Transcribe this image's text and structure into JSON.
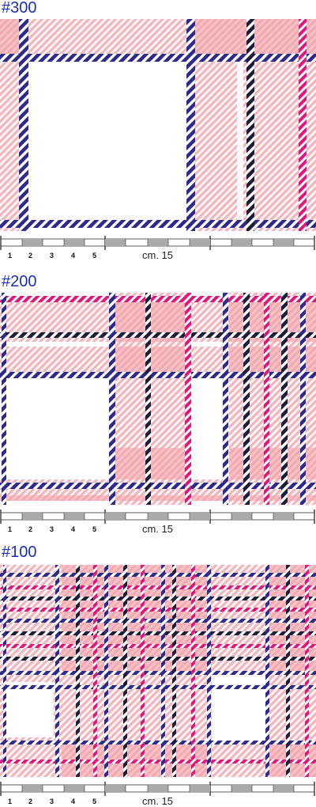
{
  "samples": [
    {
      "title": "#300",
      "numbers": [
        "1",
        "2",
        "3",
        "4",
        "5"
      ],
      "scale_label": "cm. 15"
    },
    {
      "title": "#200",
      "numbers": [
        "1",
        "2",
        "3",
        "4",
        "5"
      ],
      "scale_label": "cm. 15"
    },
    {
      "title": "#100",
      "numbers": [
        "1",
        "2",
        "3",
        "4",
        "5"
      ],
      "scale_label": "cm. 15"
    }
  ],
  "colors": {
    "title": "#1a2fb5",
    "pink": "#f4b6bc",
    "pink_dark": "#ef9ea6",
    "navy": "#2e2a8c",
    "black_navy": "#1d1d3a",
    "magenta": "#e0167a",
    "ruler_gray": "#aaaaaa"
  }
}
